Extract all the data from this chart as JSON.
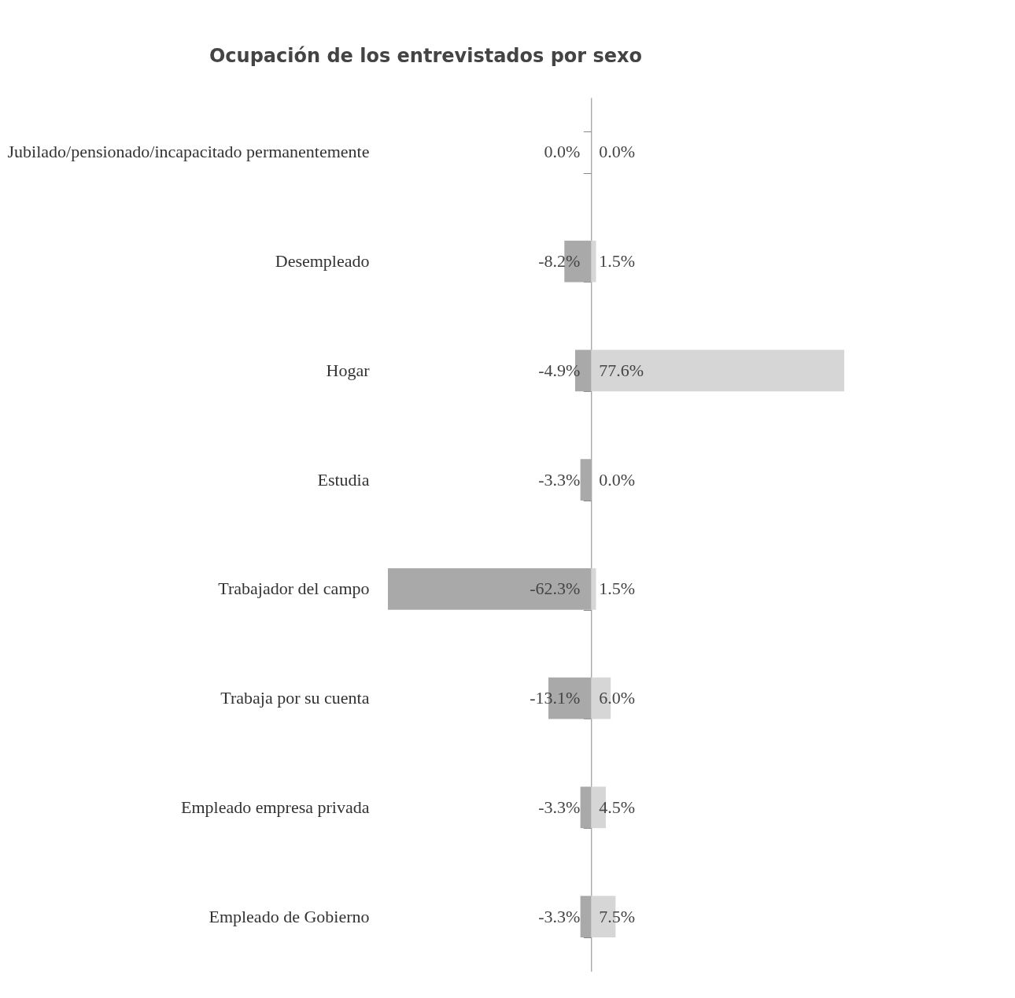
{
  "chart_data": {
    "type": "bar",
    "orientation": "horizontal",
    "title": "Ocupación de los entrevistados por sexo",
    "categories": [
      "Jubilado/pensionado/incapacitado permanentemente",
      "Desempleado",
      "Hogar",
      "Estudia",
      "Trabajador del campo",
      "Trabaja por su cuenta",
      "Empleado empresa privada",
      "Empleado de Gobierno"
    ],
    "series": [
      {
        "color": "#a9a9a9",
        "values": [
          0.0,
          -8.2,
          -4.9,
          -3.3,
          -62.3,
          -13.1,
          -3.3,
          -3.3
        ],
        "value_labels": [
          "0.0%",
          "-8.2%",
          "-4.9%",
          "-3.3%",
          "-62.3%",
          "-13.1%",
          "-3.3%",
          "-3.3%"
        ]
      },
      {
        "color": "#d6d6d6",
        "values": [
          0.0,
          1.5,
          77.6,
          0.0,
          1.5,
          6.0,
          4.5,
          7.5
        ],
        "value_labels": [
          "0.0%",
          "1.5%",
          "77.6%",
          "0.0%",
          "1.5%",
          "6.0%",
          "4.5%",
          "7.5%"
        ]
      }
    ],
    "stacked": true,
    "tick_labels": "y"
  }
}
